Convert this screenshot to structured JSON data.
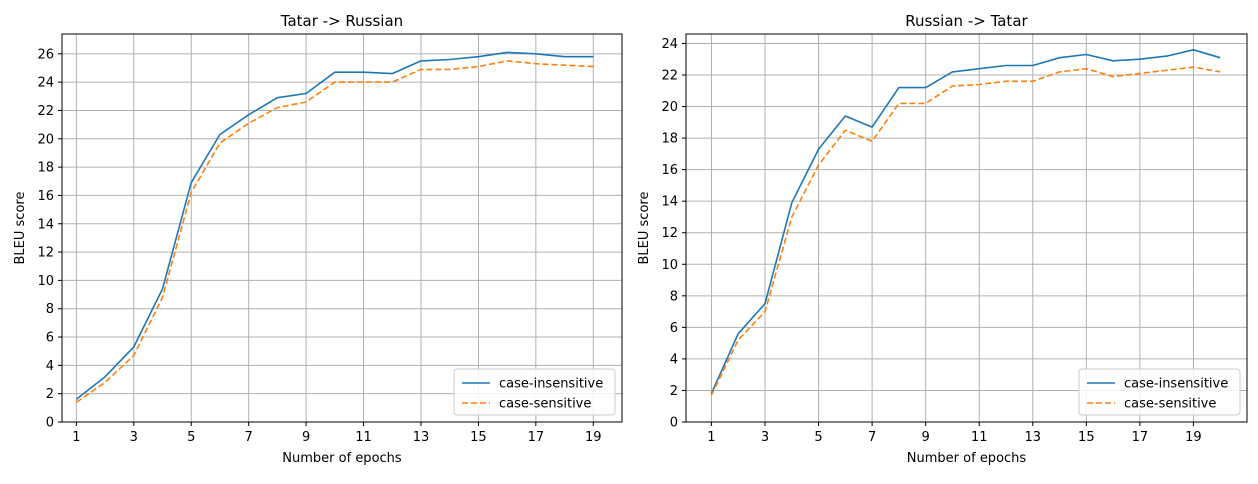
{
  "chart_data": [
    {
      "type": "line",
      "title": "Tatar -> Russian",
      "xlabel": "Number of epochs",
      "ylabel": "BLEU score",
      "xlim": [
        0.5,
        20.0
      ],
      "ylim": [
        0,
        27.4
      ],
      "xticks": [
        1,
        3,
        5,
        7,
        9,
        11,
        13,
        15,
        17,
        19
      ],
      "yticks": [
        0,
        2,
        4,
        6,
        8,
        10,
        12,
        14,
        16,
        18,
        20,
        22,
        24,
        26
      ],
      "grid": true,
      "legend_position": "lower-right",
      "x": [
        1,
        2,
        3,
        4,
        5,
        6,
        7,
        8,
        9,
        10,
        11,
        12,
        13,
        14,
        15,
        16,
        17,
        18,
        19
      ],
      "series": [
        {
          "name": "case-insensitive",
          "color": "#1f77b4",
          "style": "solid",
          "values": [
            1.6,
            3.2,
            5.3,
            9.4,
            16.9,
            20.3,
            21.7,
            22.9,
            23.2,
            24.7,
            24.7,
            24.6,
            25.5,
            25.6,
            25.8,
            26.1,
            26.0,
            25.8,
            25.8
          ]
        },
        {
          "name": "case-sensitive",
          "color": "#ff7f0e",
          "style": "dashed",
          "values": [
            1.4,
            2.8,
            4.7,
            8.8,
            16.2,
            19.7,
            21.1,
            22.2,
            22.6,
            24.0,
            24.0,
            24.0,
            24.9,
            24.9,
            25.1,
            25.5,
            25.3,
            25.2,
            25.1
          ]
        }
      ]
    },
    {
      "type": "line",
      "title": "Russian -> Tatar",
      "xlabel": "Number of epochs",
      "ylabel": "BLEU score",
      "xlim": [
        0.05,
        21.0
      ],
      "ylim": [
        0,
        24.6
      ],
      "xticks": [
        1,
        3,
        5,
        7,
        9,
        11,
        13,
        15,
        17,
        19
      ],
      "yticks": [
        0,
        2,
        4,
        6,
        8,
        10,
        12,
        14,
        16,
        18,
        20,
        22,
        24
      ],
      "grid": true,
      "legend_position": "lower-right",
      "x": [
        1,
        2,
        3,
        4,
        5,
        6,
        7,
        8,
        9,
        10,
        11,
        12,
        13,
        14,
        15,
        16,
        17,
        18,
        19,
        20
      ],
      "series": [
        {
          "name": "case-insensitive",
          "color": "#1f77b4",
          "style": "solid",
          "values": [
            1.8,
            5.6,
            7.5,
            13.9,
            17.3,
            19.4,
            18.7,
            21.2,
            21.2,
            22.2,
            22.4,
            22.6,
            22.6,
            23.1,
            23.3,
            22.9,
            23.0,
            23.2,
            23.6,
            23.1
          ]
        },
        {
          "name": "case-sensitive",
          "color": "#ff7f0e",
          "style": "dashed",
          "values": [
            1.7,
            5.2,
            7.0,
            13.0,
            16.3,
            18.5,
            17.8,
            20.2,
            20.2,
            21.3,
            21.4,
            21.6,
            21.6,
            22.2,
            22.4,
            21.9,
            22.1,
            22.3,
            22.5,
            22.2
          ]
        }
      ]
    }
  ]
}
